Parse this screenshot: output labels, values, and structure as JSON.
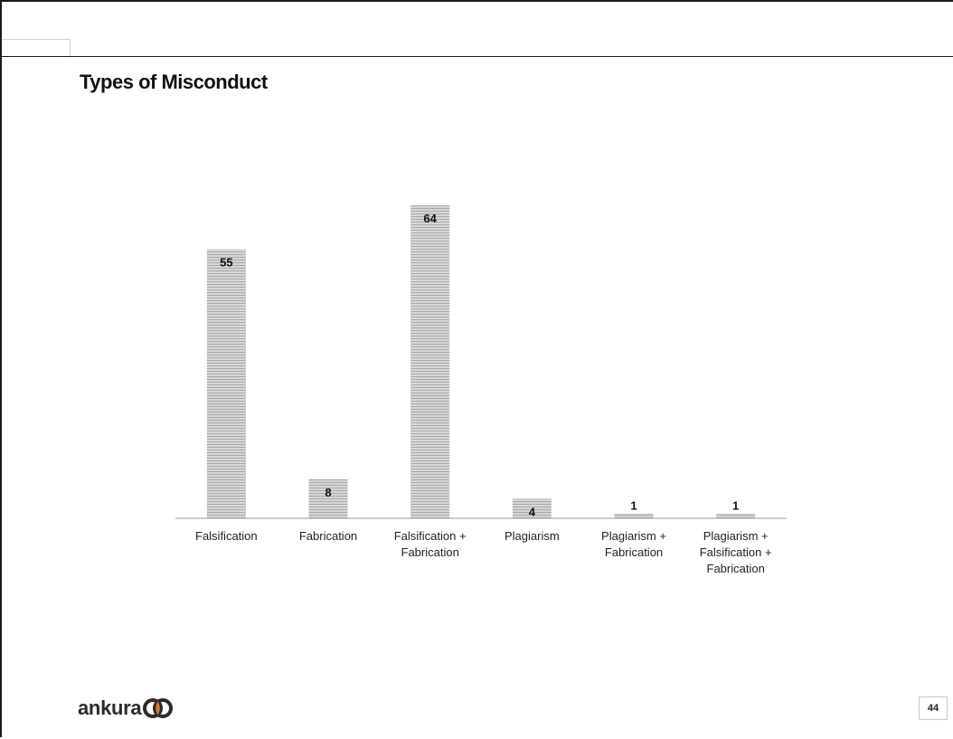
{
  "slide": {
    "title": "Types of Misconduct",
    "page_number": "44",
    "logo_text": "ankura"
  },
  "chart_data": {
    "type": "bar",
    "title": "",
    "xlabel": "",
    "ylabel": "",
    "categories": [
      [
        "Falsification"
      ],
      [
        "Fabrication"
      ],
      [
        "Falsification +",
        "Fabrication"
      ],
      [
        "Plagiarism"
      ],
      [
        "Plagiarism +",
        "Fabrication"
      ],
      [
        "Plagiarism +",
        "Falsification +",
        "Fabrication"
      ]
    ],
    "values": [
      55,
      8,
      64,
      4,
      1,
      1
    ],
    "ylim": [
      0,
      64
    ],
    "grid": false,
    "legend": "none",
    "bar_fill": "#d6d6d6",
    "bar_stripe": "#a9a9a9"
  }
}
